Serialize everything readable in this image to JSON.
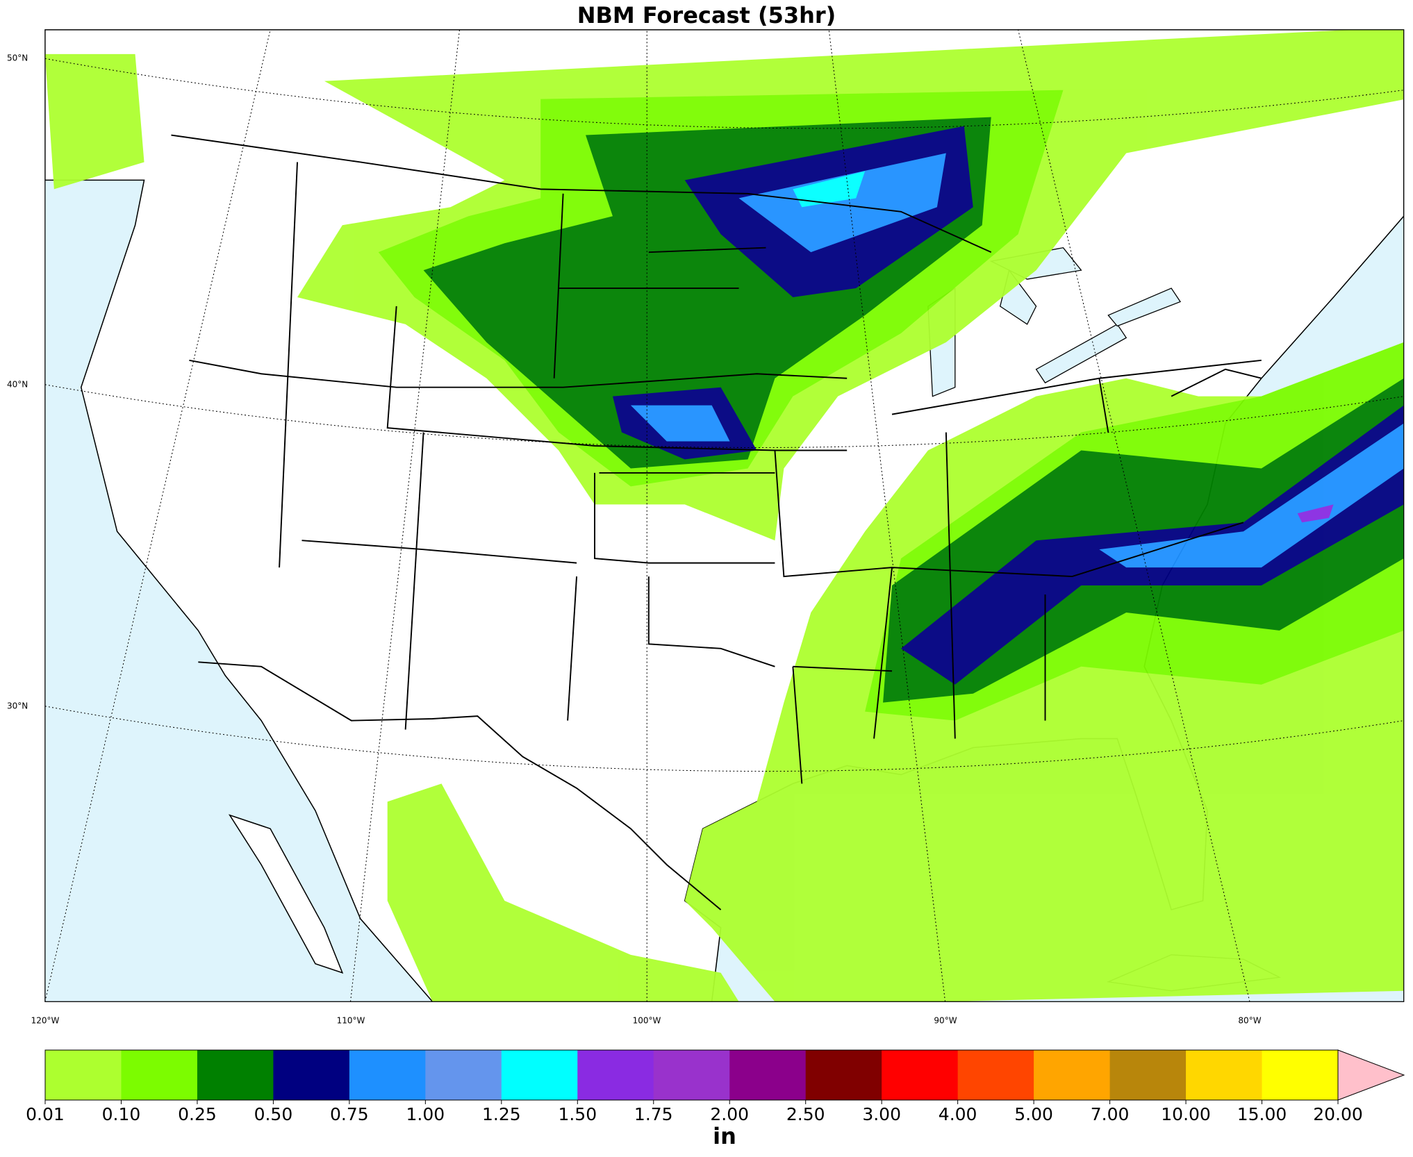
{
  "title": "NBM Forecast (53hr)",
  "map": {
    "lat_labels": [
      "50°N",
      "40°N",
      "30°N"
    ],
    "lon_labels": [
      "120°W",
      "110°W",
      "100°W",
      "90°W",
      "80°W"
    ]
  },
  "colorbar": {
    "ticks": [
      0.01,
      {
        "value": 0.1,
        "label": "0.10"
      },
      0.25,
      {
        "value": 0.5,
        "label": "0.50"
      },
      0.75,
      {
        "value": 1,
        "label": "1.00"
      },
      1.25,
      {
        "value": 1.5,
        "label": "1.50"
      },
      1.75,
      {
        "value": 2,
        "label": "2.00"
      },
      {
        "value": 2.5,
        "label": "2.50"
      },
      {
        "value": 3,
        "label": "3.00"
      },
      {
        "value": 4,
        "label": "4.00"
      },
      {
        "value": 5,
        "label": "5.00"
      },
      {
        "value": 7,
        "label": "7.00"
      },
      {
        "value": 10,
        "label": "10.00"
      },
      {
        "value": 15,
        "label": "15.00"
      },
      {
        "value": 20,
        "label": "20.00"
      }
    ],
    "colors": [
      "#adff2f",
      "#7cfc00",
      "#008000",
      "#000080",
      "#1e90ff",
      "#6495ed",
      "#00ffff",
      "#8a2be2",
      "#9932cc",
      "#8b008b",
      "#800000",
      "#ff0000",
      "#ff4500",
      "#ffa500",
      "#b8860b",
      "#ffd700",
      "#ffff00"
    ],
    "extend_color": "#ffc0cb",
    "unit": "in"
  }
}
